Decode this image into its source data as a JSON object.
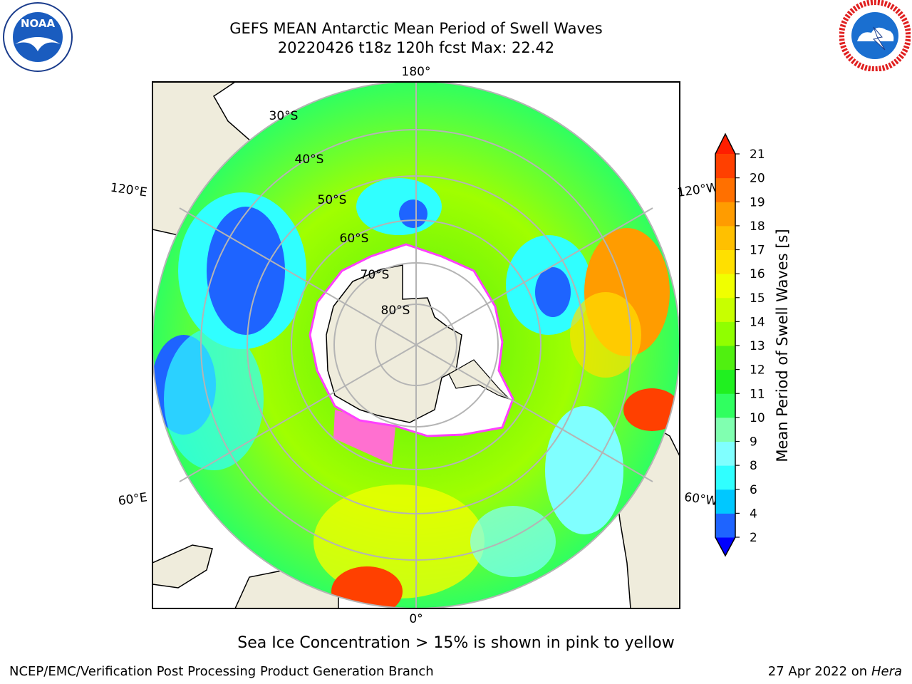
{
  "title_line1": "GEFS MEAN Antarctic Mean Period of Swell Waves",
  "title_line2": "20220426 t18z 120h fcst   Max: 22.42",
  "caption": "Sea Ice Concentration > 15% is shown in pink to yellow",
  "footer_left": "NCEP/EMC/Verification Post Processing Product Generation Branch",
  "footer_right_date": "27 Apr 2022 on",
  "footer_right_host": "Hera",
  "logos": {
    "left": {
      "icon": "noaa-logo",
      "text": "NOAA",
      "ring_text": "NATIONAL OCEANIC AND ATMOSPHERIC ADMINISTRATION · U.S. DEPARTMENT OF COMMERCE"
    },
    "right": {
      "icon": "nws-logo",
      "ring_text": "NATIONAL WEATHER SERVICE"
    }
  },
  "map": {
    "projection": "south-polar-stereographic",
    "longitude_labels": {
      "top": "180°",
      "bottom": "0°",
      "upper_left": "120°E",
      "upper_right": "120°W",
      "lower_left": "60°E",
      "lower_right": "60°W"
    },
    "latitude_labels": [
      "30°S",
      "40°S",
      "50°S",
      "60°S",
      "70°S",
      "80°S"
    ]
  },
  "colorbar": {
    "label": "Mean Period of Swell Waves [s]",
    "ticks": [
      "2",
      "4",
      "6",
      "8",
      "9",
      "10",
      "11",
      "12",
      "13",
      "14",
      "15",
      "16",
      "17",
      "18",
      "19",
      "20",
      "21"
    ],
    "colors": [
      "#1e64ff",
      "#00c8ff",
      "#30ffff",
      "#80ffff",
      "#80ffb0",
      "#30ff60",
      "#20f020",
      "#50f010",
      "#90ff00",
      "#c8ff00",
      "#f0ff00",
      "#ffe000",
      "#ffc000",
      "#ff9c00",
      "#ff7000",
      "#ff4000"
    ],
    "under_color": "#0000ff",
    "over_color": "#ff1e00"
  },
  "colors": {
    "land": "#efecdc",
    "sea_ice": "#ffffff",
    "sea_ice_edge": "#ff40ff",
    "grid": "#b4b4b4"
  }
}
